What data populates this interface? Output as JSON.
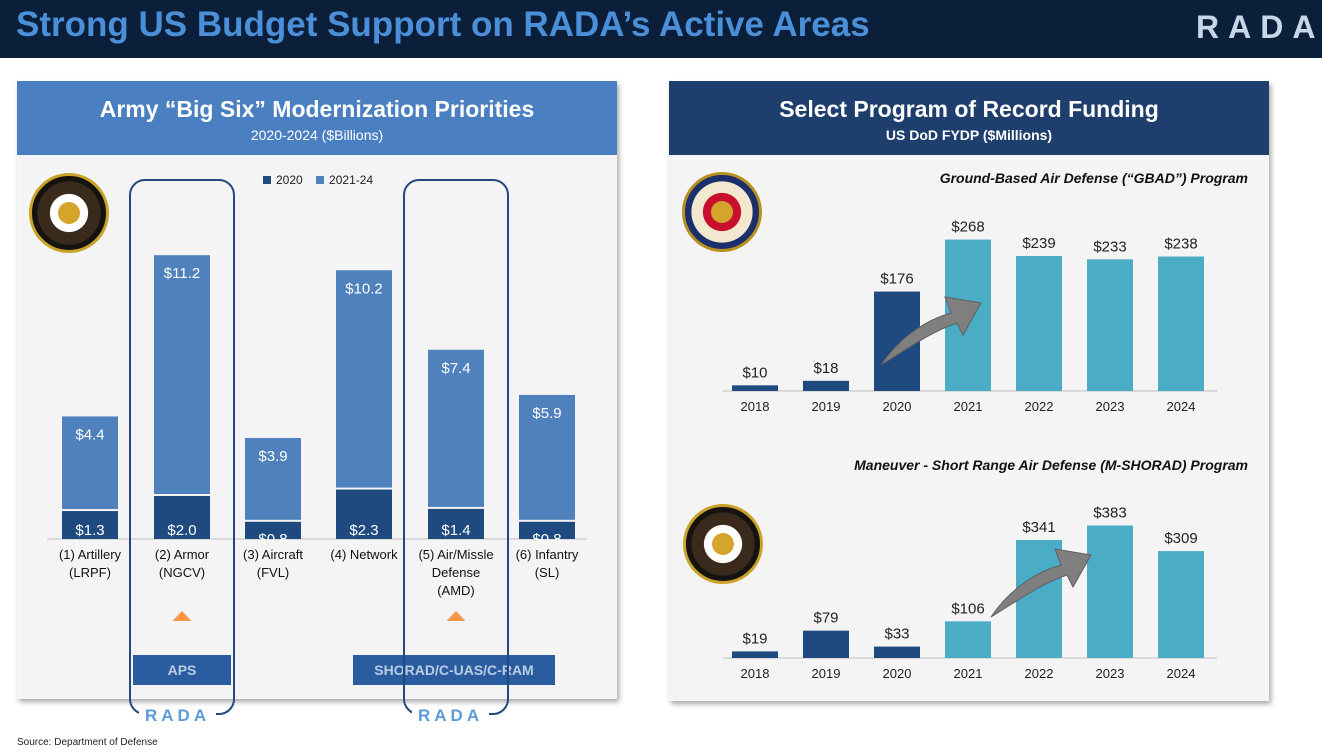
{
  "header": {
    "title": "Strong US Budget Support on RADA’s Active Areas",
    "logo": "RADA"
  },
  "left_panel": {
    "title": "Army “Big Six” Modernization Priorities",
    "subtitle": "2020-2024 ($Billions)",
    "legend": [
      "2020",
      "2021-24"
    ],
    "boxes": [
      {
        "label": "APS",
        "logo": "RADA"
      },
      {
        "label": "SHORAD/C-UAS/C-RAM",
        "logo": "RADA"
      }
    ]
  },
  "right_panel": {
    "title": "Select Program of Record Funding",
    "subtitle": "US DoD FYDP ($Millions)",
    "gbad_title": "Ground-Based Air Defense (“GBAD”) Program",
    "mshorad_title": "Maneuver - Short Range Air Defense (M-SHORAD) Program"
  },
  "source": "Source: Department of Defense",
  "colors": {
    "dark_blue": "#1f4a80",
    "mid_blue": "#4f81bd",
    "teal": "#4bacc6",
    "arrow_gray": "#7f7f7f",
    "orange": "#f79646"
  },
  "chart_data": [
    {
      "type": "bar",
      "stacked": true,
      "categories": [
        "(1) Artillery (LRPF)",
        "(2) Armor (NGCV)",
        "(3) Aircraft (FVL)",
        "(4) Network",
        "(5) Air/Missle Defense (AMD)",
        "(6) Infantry (SL)"
      ],
      "category_lines": [
        [
          "(1) Artillery",
          "(LRPF)"
        ],
        [
          "(2) Armor",
          "(NGCV)"
        ],
        [
          "(3) Aircraft",
          "(FVL)"
        ],
        [
          "(4) Network"
        ],
        [
          "(5) Air/Missle",
          "Defense",
          "(AMD)"
        ],
        [
          "(6) Infantry",
          "(SL)"
        ]
      ],
      "series": [
        {
          "name": "2020",
          "values": [
            1.3,
            2.0,
            0.8,
            2.3,
            1.4,
            0.8
          ],
          "labels": [
            "$1.3",
            "$2.0",
            "$0.8",
            "$2.3",
            "$1.4",
            "$0.8"
          ]
        },
        {
          "name": "2021-24",
          "values": [
            4.4,
            11.2,
            3.9,
            10.2,
            7.4,
            5.9
          ],
          "labels": [
            "$4.4",
            "$11.2",
            "$3.9",
            "$10.2",
            "$7.4",
            "$5.9"
          ]
        }
      ],
      "title": "Army “Big Six” Modernization Priorities",
      "legend_position": "top"
    },
    {
      "type": "bar",
      "title": "Ground-Based Air Defense (“GBAD”) Program",
      "categories": [
        "2018",
        "2019",
        "2020",
        "2021",
        "2022",
        "2023",
        "2024"
      ],
      "values": [
        10,
        18,
        176,
        268,
        239,
        233,
        238
      ],
      "labels": [
        "$10",
        "$18",
        "$176",
        "$268",
        "$239",
        "$233",
        "$238"
      ]
    },
    {
      "type": "bar",
      "title": "Maneuver - Short Range Air Defense (M-SHORAD) Program",
      "categories": [
        "2018",
        "2019",
        "2020",
        "2021",
        "2022",
        "2023",
        "2024"
      ],
      "values": [
        19,
        79,
        33,
        106,
        341,
        383,
        309
      ],
      "labels": [
        "$19",
        "$79",
        "$33",
        "$106",
        "$341",
        "$383",
        "$309"
      ]
    }
  ]
}
